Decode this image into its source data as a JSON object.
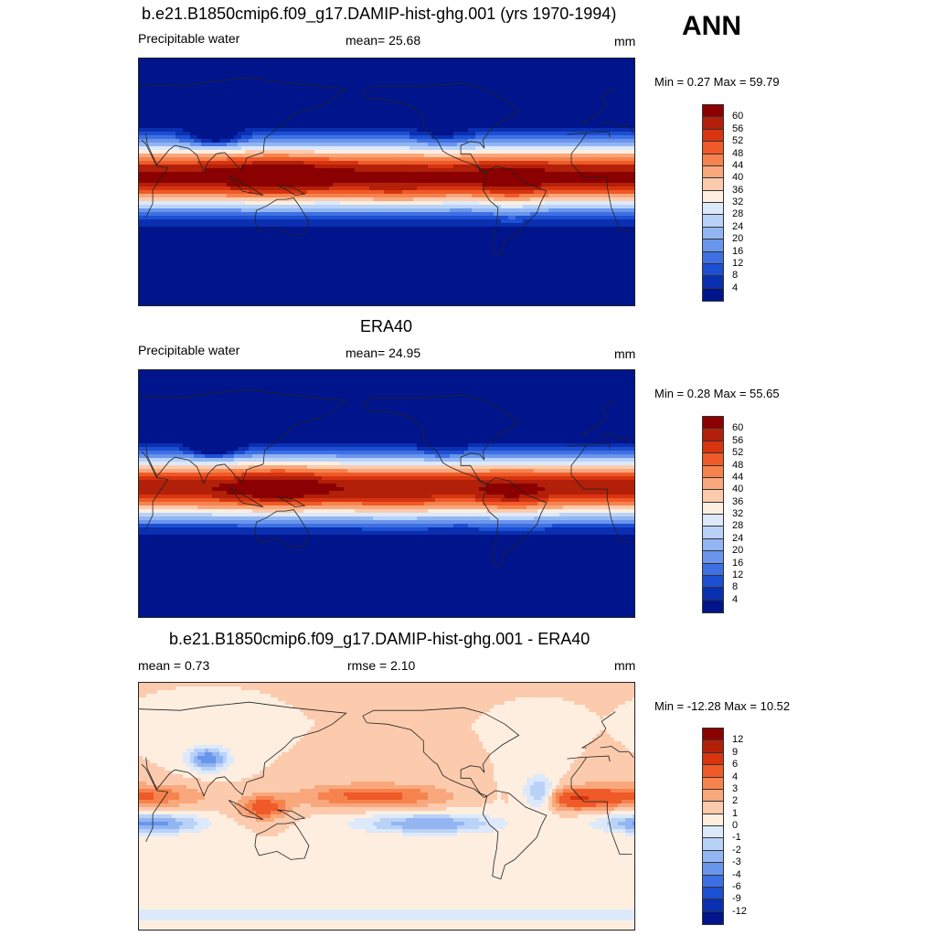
{
  "ann_label": "ANN",
  "panels": [
    {
      "title": "b.e21.B1850cmip6.f09_g17.DAMIP-hist-ghg.001 (yrs 1970-1994)",
      "left_label": "Precipitable water",
      "center_label": "mean=  25.68",
      "units": "mm",
      "minmax": "Min =   0.27 Max =  59.79"
    },
    {
      "title": "ERA40",
      "left_label": "Precipitable water",
      "center_label": "mean=  24.95",
      "units": "mm",
      "minmax": "Min =   0.28 Max =  55.65"
    },
    {
      "title": "b.e21.B1850cmip6.f09_g17.DAMIP-hist-ghg.001 - ERA40",
      "left_label": "mean =   0.73",
      "center_label": "rmse =   2.10",
      "units": "mm",
      "minmax": "Min = -12.28 Max =  10.52"
    }
  ],
  "chart_data": [
    {
      "type": "heatmap",
      "title": "b.e21.B1850cmip6.f09_g17.DAMIP-hist-ghg.001 (yrs 1970-1994)",
      "variable": "Precipitable water",
      "units": "mm",
      "mean": 25.68,
      "min": 0.27,
      "max": 59.79,
      "colorbar_levels": [
        "60",
        "56",
        "52",
        "48",
        "44",
        "40",
        "36",
        "32",
        "28",
        "24",
        "20",
        "16",
        "12",
        "8",
        "4"
      ],
      "colorbar_colors": [
        "#8b0000",
        "#b2200a",
        "#d83410",
        "#ef5a28",
        "#f6834e",
        "#f9a77c",
        "#fccbae",
        "#fdeee0",
        "#dce9fb",
        "#b9d2f8",
        "#93b6f2",
        "#6a95ec",
        "#3e70e3",
        "#1d4fd3",
        "#0a2fb0",
        "#00148c"
      ]
    },
    {
      "type": "heatmap",
      "title": "ERA40",
      "variable": "Precipitable water",
      "units": "mm",
      "mean": 24.95,
      "min": 0.28,
      "max": 55.65,
      "colorbar_levels": [
        "60",
        "56",
        "52",
        "48",
        "44",
        "40",
        "36",
        "32",
        "28",
        "24",
        "20",
        "16",
        "12",
        "8",
        "4"
      ],
      "colorbar_colors": [
        "#8b0000",
        "#b2200a",
        "#d83410",
        "#ef5a28",
        "#f6834e",
        "#f9a77c",
        "#fccbae",
        "#fdeee0",
        "#dce9fb",
        "#b9d2f8",
        "#93b6f2",
        "#6a95ec",
        "#3e70e3",
        "#1d4fd3",
        "#0a2fb0",
        "#00148c"
      ]
    },
    {
      "type": "heatmap",
      "title": "b.e21.B1850cmip6.f09_g17.DAMIP-hist-ghg.001 - ERA40",
      "units": "mm",
      "mean": 0.73,
      "rmse": 2.1,
      "min": -12.28,
      "max": 10.52,
      "colorbar_levels": [
        "12",
        "9",
        "6",
        "4",
        "3",
        "2",
        "1",
        "0",
        "-1",
        "-2",
        "-3",
        "-4",
        "-6",
        "-9",
        "-12"
      ],
      "colorbar_colors": [
        "#8b0000",
        "#b2200a",
        "#d83410",
        "#ef5a28",
        "#f6834e",
        "#f9a77c",
        "#fccbae",
        "#fdeee0",
        "#dce9fb",
        "#b9d2f8",
        "#93b6f2",
        "#6a95ec",
        "#3e70e3",
        "#1d4fd3",
        "#0a2fb0",
        "#00148c"
      ]
    }
  ]
}
